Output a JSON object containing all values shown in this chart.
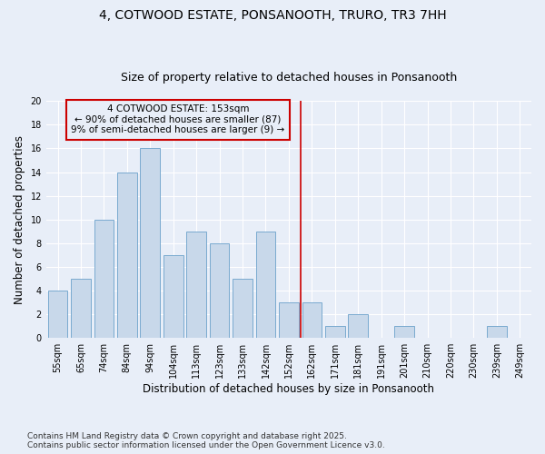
{
  "title1": "4, COTWOOD ESTATE, PONSANOOTH, TRURO, TR3 7HH",
  "title2": "Size of property relative to detached houses in Ponsanooth",
  "xlabel": "Distribution of detached houses by size in Ponsanooth",
  "ylabel": "Number of detached properties",
  "categories": [
    "55sqm",
    "65sqm",
    "74sqm",
    "84sqm",
    "94sqm",
    "104sqm",
    "113sqm",
    "123sqm",
    "133sqm",
    "142sqm",
    "152sqm",
    "162sqm",
    "171sqm",
    "181sqm",
    "191sqm",
    "201sqm",
    "210sqm",
    "220sqm",
    "230sqm",
    "239sqm",
    "249sqm"
  ],
  "values": [
    4,
    5,
    10,
    14,
    16,
    7,
    9,
    8,
    5,
    9,
    3,
    3,
    1,
    2,
    0,
    1,
    0,
    0,
    0,
    1,
    0
  ],
  "bar_color": "#c8d8ea",
  "bar_edge_color": "#7aaad0",
  "bar_width": 0.85,
  "vline_x": 10.5,
  "vline_color": "#cc0000",
  "vline_lw": 1.2,
  "annotation_line1": "4 COTWOOD ESTATE: 153sqm",
  "annotation_line2": "← 90% of detached houses are smaller (87)",
  "annotation_line3": "9% of semi-detached houses are larger (9) →",
  "box_color": "#cc0000",
  "ylim": [
    0,
    20
  ],
  "yticks": [
    0,
    2,
    4,
    6,
    8,
    10,
    12,
    14,
    16,
    18,
    20
  ],
  "bg_color": "#e8eef8",
  "grid_color": "#ffffff",
  "footer1": "Contains HM Land Registry data © Crown copyright and database right 2025.",
  "footer2": "Contains public sector information licensed under the Open Government Licence v3.0.",
  "title1_fontsize": 10,
  "title2_fontsize": 9,
  "xlabel_fontsize": 8.5,
  "ylabel_fontsize": 8.5,
  "tick_fontsize": 7,
  "annotation_fontsize": 7.5,
  "footer_fontsize": 6.5
}
